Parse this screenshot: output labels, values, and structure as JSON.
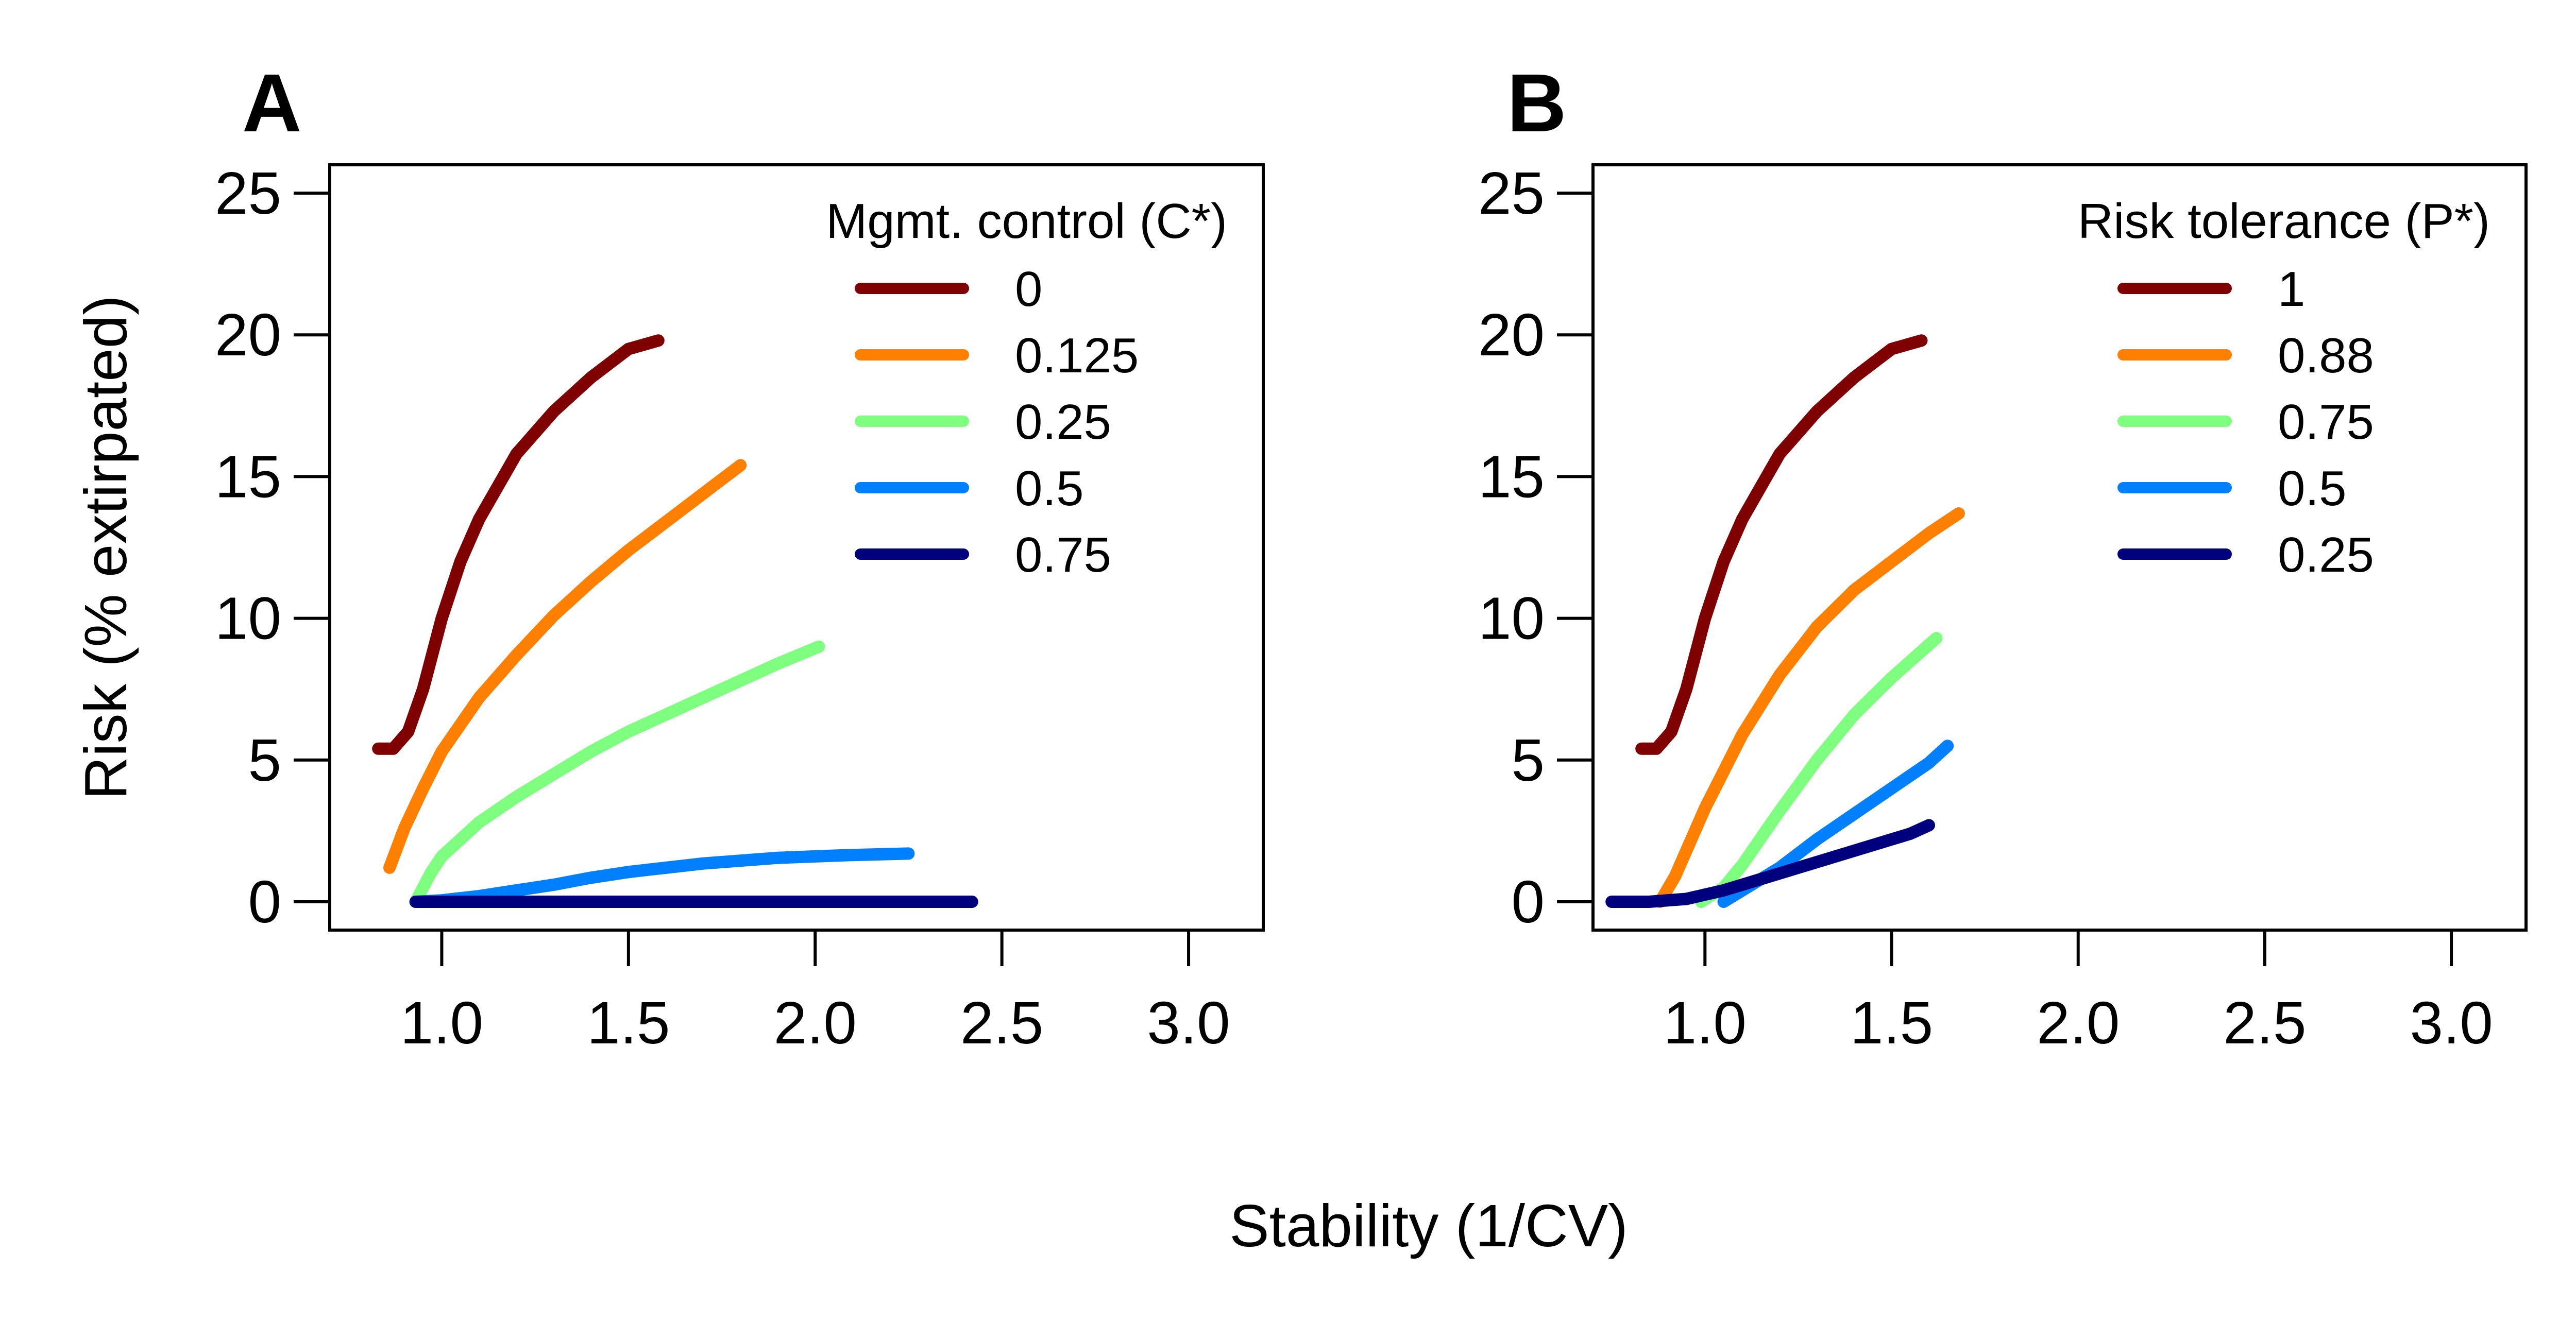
{
  "figure": {
    "xlabel": "Stability (1/CV)"
  },
  "chart_data": [
    {
      "type": "line",
      "panel": "A",
      "xlabel": "Stability (1/CV)",
      "ylabel": "Risk (% extirpated)",
      "xlim": [
        0.7,
        3.2
      ],
      "ylim": [
        -1,
        26
      ],
      "xticks": [
        "1.0",
        "1.5",
        "2.0",
        "2.5",
        "3.0"
      ],
      "yticks": [
        "0",
        "5",
        "10",
        "15",
        "20",
        "25"
      ],
      "grid": false,
      "legend_position": "top-right",
      "legend_title": "Mgmt. control (C*)",
      "series": [
        {
          "name": "0",
          "color": "#7F0000",
          "points": [
            [
              0.83,
              5.4
            ],
            [
              0.87,
              5.4
            ],
            [
              0.91,
              6.0
            ],
            [
              0.95,
              7.5
            ],
            [
              1.0,
              10.0
            ],
            [
              1.05,
              12.0
            ],
            [
              1.1,
              13.5
            ],
            [
              1.2,
              15.8
            ],
            [
              1.3,
              17.3
            ],
            [
              1.4,
              18.5
            ],
            [
              1.5,
              19.5
            ],
            [
              1.58,
              19.8
            ]
          ]
        },
        {
          "name": "0.125",
          "color": "#FF7F00",
          "points": [
            [
              0.86,
              1.2
            ],
            [
              0.9,
              2.6
            ],
            [
              0.95,
              4.0
            ],
            [
              1.0,
              5.3
            ],
            [
              1.1,
              7.2
            ],
            [
              1.2,
              8.7
            ],
            [
              1.3,
              10.1
            ],
            [
              1.4,
              11.3
            ],
            [
              1.5,
              12.4
            ],
            [
              1.6,
              13.4
            ],
            [
              1.7,
              14.4
            ],
            [
              1.8,
              15.4
            ]
          ]
        },
        {
          "name": "0.25",
          "color": "#7FFF7F",
          "points": [
            [
              0.93,
              0.0
            ],
            [
              0.97,
              1.0
            ],
            [
              1.0,
              1.6
            ],
            [
              1.1,
              2.8
            ],
            [
              1.2,
              3.7
            ],
            [
              1.3,
              4.5
            ],
            [
              1.4,
              5.3
            ],
            [
              1.5,
              6.0
            ],
            [
              1.6,
              6.6
            ],
            [
              1.7,
              7.2
            ],
            [
              1.8,
              7.8
            ],
            [
              1.9,
              8.4
            ],
            [
              2.01,
              9.0
            ]
          ]
        },
        {
          "name": "0.5",
          "color": "#007FFF",
          "points": [
            [
              0.93,
              0.0
            ],
            [
              1.0,
              0.05
            ],
            [
              1.1,
              0.2
            ],
            [
              1.2,
              0.4
            ],
            [
              1.3,
              0.6
            ],
            [
              1.4,
              0.85
            ],
            [
              1.5,
              1.05
            ],
            [
              1.6,
              1.2
            ],
            [
              1.7,
              1.35
            ],
            [
              1.8,
              1.45
            ],
            [
              1.9,
              1.55
            ],
            [
              2.0,
              1.6
            ],
            [
              2.1,
              1.65
            ],
            [
              2.25,
              1.7
            ]
          ]
        },
        {
          "name": "0.75",
          "color": "#00007F",
          "points": [
            [
              0.93,
              0.0
            ],
            [
              1.2,
              0.0
            ],
            [
              1.6,
              0.0
            ],
            [
              2.0,
              0.0
            ],
            [
              2.42,
              0.0
            ]
          ]
        }
      ]
    },
    {
      "type": "line",
      "panel": "B",
      "xlabel": "Stability (1/CV)",
      "ylabel": "",
      "xlim": [
        0.7,
        3.2
      ],
      "ylim": [
        -1,
        26
      ],
      "xticks": [
        "1.0",
        "1.5",
        "2.0",
        "2.5",
        "3.0"
      ],
      "yticks": [
        "0",
        "5",
        "10",
        "15",
        "20",
        "25"
      ],
      "grid": false,
      "legend_position": "top-right",
      "legend_title": "Risk tolerance (P*)",
      "series": [
        {
          "name": "1",
          "color": "#7F0000",
          "points": [
            [
              0.83,
              5.4
            ],
            [
              0.87,
              5.4
            ],
            [
              0.91,
              6.0
            ],
            [
              0.95,
              7.5
            ],
            [
              1.0,
              10.0
            ],
            [
              1.05,
              12.0
            ],
            [
              1.1,
              13.5
            ],
            [
              1.2,
              15.8
            ],
            [
              1.3,
              17.3
            ],
            [
              1.4,
              18.5
            ],
            [
              1.5,
              19.5
            ],
            [
              1.58,
              19.8
            ]
          ]
        },
        {
          "name": "0.88",
          "color": "#FF7F00",
          "points": [
            [
              0.88,
              0.0
            ],
            [
              0.92,
              0.9
            ],
            [
              0.95,
              1.8
            ],
            [
              1.0,
              3.3
            ],
            [
              1.1,
              5.9
            ],
            [
              1.2,
              8.0
            ],
            [
              1.3,
              9.7
            ],
            [
              1.4,
              11.0
            ],
            [
              1.5,
              12.0
            ],
            [
              1.6,
              13.0
            ],
            [
              1.68,
              13.7
            ]
          ]
        },
        {
          "name": "0.75",
          "color": "#7FFF7F",
          "points": [
            [
              0.99,
              0.0
            ],
            [
              1.05,
              0.5
            ],
            [
              1.1,
              1.3
            ],
            [
              1.2,
              3.2
            ],
            [
              1.3,
              5.0
            ],
            [
              1.4,
              6.6
            ],
            [
              1.5,
              7.9
            ],
            [
              1.62,
              9.3
            ]
          ]
        },
        {
          "name": "0.5",
          "color": "#007FFF",
          "points": [
            [
              1.05,
              0.0
            ],
            [
              1.1,
              0.4
            ],
            [
              1.2,
              1.2
            ],
            [
              1.3,
              2.2
            ],
            [
              1.4,
              3.1
            ],
            [
              1.5,
              4.0
            ],
            [
              1.6,
              4.9
            ],
            [
              1.65,
              5.5
            ]
          ]
        },
        {
          "name": "0.25",
          "color": "#00007F",
          "points": [
            [
              0.75,
              0.0
            ],
            [
              0.85,
              0.0
            ],
            [
              0.95,
              0.1
            ],
            [
              1.05,
              0.4
            ],
            [
              1.15,
              0.8
            ],
            [
              1.25,
              1.2
            ],
            [
              1.35,
              1.6
            ],
            [
              1.45,
              2.0
            ],
            [
              1.55,
              2.4
            ],
            [
              1.6,
              2.7
            ]
          ]
        }
      ]
    }
  ]
}
